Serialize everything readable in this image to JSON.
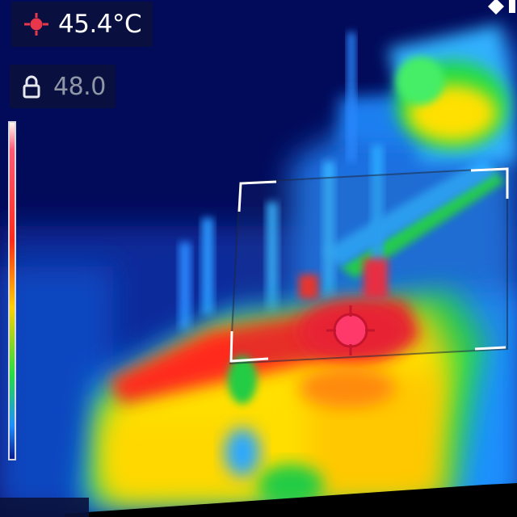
{
  "spot_readout": {
    "icon": "crosshair-spot-icon",
    "value": "45.4°C",
    "color": "#ffffff",
    "icon_color": "#e8364a"
  },
  "lock_readout": {
    "icon": "lock-icon",
    "value": "48.0",
    "color": "#8f96a6"
  },
  "corner_icon": "diamond-icon",
  "palette": {
    "background": "#020a5a",
    "cold": "#0a2aa0",
    "cool": "#1e90ff",
    "mid": "#22dd44",
    "warm": "#ffe000",
    "hot": "#ff2a1a",
    "hottest": "#ff3a6a",
    "reticle": "#ffffff",
    "spot_marker": "#e8364a"
  }
}
